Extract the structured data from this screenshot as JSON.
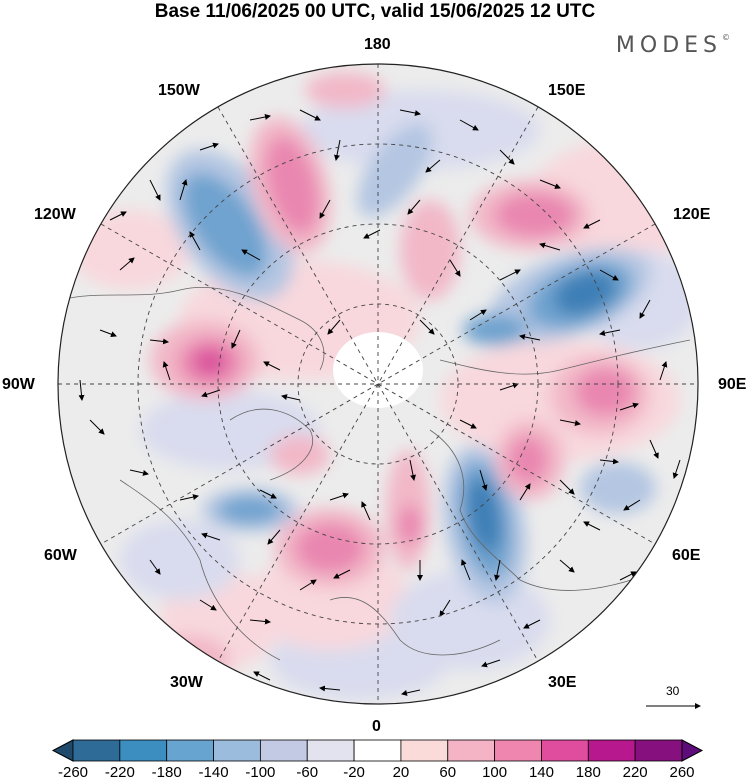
{
  "title": "Base 11/06/2025 00 UTC, valid 15/06/2025 12 UTC",
  "brand": "MODES",
  "brand_mark": "©",
  "longitude_labels": {
    "n": "180",
    "nne": "150E",
    "ene": "120E",
    "e": "90E",
    "ese": "60E",
    "sse": "30E",
    "s": "0",
    "ssw": "30W",
    "wsw": "60W",
    "w": "90W",
    "wnw": "120W",
    "nnw": "150W"
  },
  "reference_vector_label": "30",
  "colorbar": {
    "ticks": [
      "-260",
      "-220",
      "-180",
      "-140",
      "-100",
      "-60",
      "-20",
      "20",
      "60",
      "100",
      "140",
      "180",
      "220",
      "260"
    ],
    "colors": [
      "#1f4a6b",
      "#2e6b96",
      "#3c8ec0",
      "#67a4cf",
      "#9cbcdd",
      "#c2cbe3",
      "#e3e3f0",
      "#ffffff",
      "#fbdada",
      "#f4b4c6",
      "#ee86b0",
      "#e04d9e",
      "#b8188d",
      "#86117e",
      "#5e0c7a"
    ]
  },
  "anomaly_colors": {
    "blue_strong": "#3c7fb6",
    "blue_mid": "#6fa3cf",
    "blue_light": "#b4c6e2",
    "blue_pale": "#d9dcee",
    "pink_pale": "#f8d8dd",
    "pink_light": "#f2b8c8",
    "pink_mid": "#e987b0",
    "pink_strong": "#d9509c",
    "gray": "#ececec"
  }
}
